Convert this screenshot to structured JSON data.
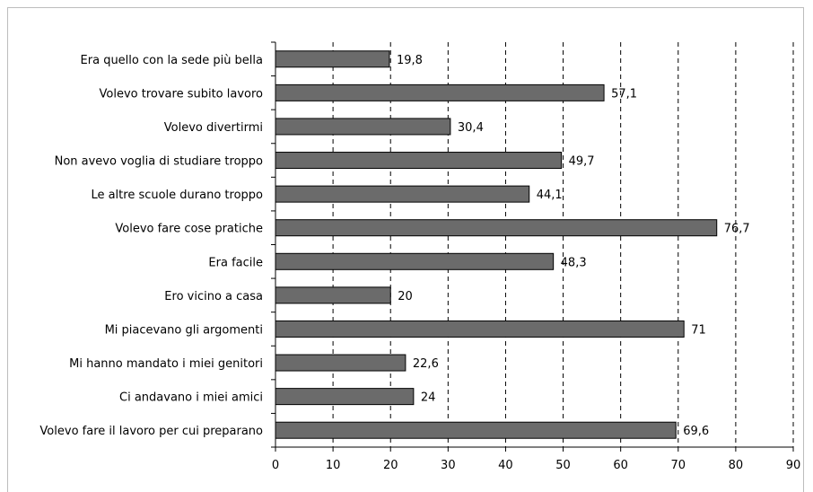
{
  "chart_data": {
    "type": "bar",
    "orientation": "horizontal",
    "categories": [
      "Era quello con la sede più bella",
      "Volevo trovare subito lavoro",
      "Volevo divertirmi",
      "Non avevo voglia di studiare troppo",
      "Le altre scuole durano troppo",
      "Volevo fare cose pratiche",
      "Era facile",
      "Ero vicino a casa",
      "Mi piacevano gli argomenti",
      "Mi hanno mandato i miei genitori",
      "Ci andavano i miei amici",
      "Volevo fare il lavoro per cui preparano"
    ],
    "values": [
      19.8,
      57.1,
      30.4,
      49.7,
      44.1,
      76.7,
      48.3,
      20,
      71,
      22.6,
      24,
      69.6
    ],
    "value_labels": [
      "19,8",
      "57,1",
      "30,4",
      "49,7",
      "44,1",
      "76,7",
      "48,3",
      "20",
      "71",
      "22,6",
      "24",
      "69,6"
    ],
    "xlim": [
      0,
      90
    ],
    "xticks": [
      "0",
      "10",
      "20",
      "30",
      "40",
      "50",
      "60",
      "70",
      "80",
      "90"
    ],
    "grid": "vertical dashed",
    "bar_color": "#6b6b6b",
    "title": "",
    "xlabel": "",
    "ylabel": ""
  }
}
